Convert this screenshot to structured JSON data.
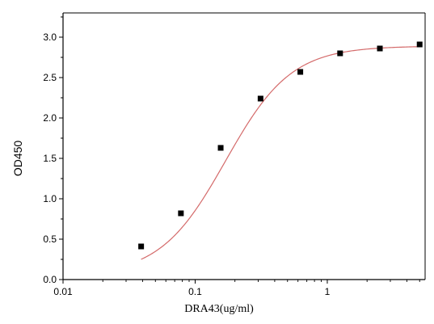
{
  "chart_data": {
    "type": "scatter",
    "xlabel": "DRA43(ug/ml)",
    "ylabel": "OD450",
    "xscale": "log",
    "xlim": [
      0.01,
      5.5
    ],
    "ylim": [
      0,
      3.3
    ],
    "x_ticks": [
      {
        "value": 0.01,
        "label": "0.01"
      },
      {
        "value": 0.1,
        "label": "0.1"
      },
      {
        "value": 1,
        "label": "1"
      }
    ],
    "y_ticks": [
      {
        "value": 0,
        "label": "0.0"
      },
      {
        "value": 0.5,
        "label": "0.5"
      },
      {
        "value": 1.0,
        "label": "1.0"
      },
      {
        "value": 1.5,
        "label": "1.5"
      },
      {
        "value": 2.0,
        "label": "2.0"
      },
      {
        "value": 2.5,
        "label": "2.5"
      },
      {
        "value": 3.0,
        "label": "3.0"
      }
    ],
    "grid": false,
    "series": [
      {
        "marker": "square",
        "color": "#000000",
        "x": [
          0.039,
          0.078,
          0.156,
          0.3125,
          0.625,
          1.25,
          2.5,
          5.0
        ],
        "y": [
          0.41,
          0.82,
          1.63,
          2.24,
          2.57,
          2.8,
          2.86,
          2.91
        ]
      }
    ],
    "fit_curve": {
      "color": "#d46a6a",
      "model": "4PL",
      "bottom": 0.05,
      "top": 2.89,
      "ec50": 0.17,
      "hill": 1.75
    }
  }
}
